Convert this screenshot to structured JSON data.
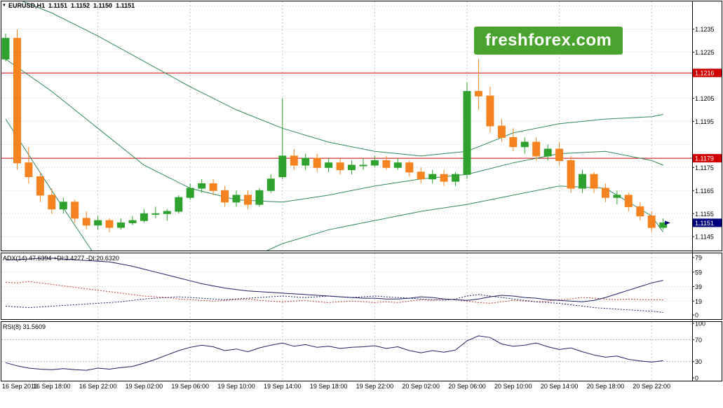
{
  "window": {
    "symbol_period": "EURUSD,H1",
    "ohlc": {
      "open": "1.1151",
      "high": "1.1152",
      "low": "1.1150",
      "close": "1.1151"
    }
  },
  "watermark": {
    "text": "freshforex.com"
  },
  "colors": {
    "bull": "#2EA12E",
    "bear": "#F5831F",
    "band": "#2E8B57",
    "grid": "#C6C6C6",
    "level_red": "#D10000",
    "bid_bg": "#00007D",
    "tag_text": "#FFFFFF",
    "adx_line": "#1F1F66",
    "plus_di": "#1F1F66",
    "minus_di": "#C23B3B",
    "rsi_line": "#1F1F66",
    "rsi_level": "#AFAFC8",
    "watermark_bg": "#4BA32F",
    "watermark_fg": "#FFFFFF",
    "axis_text": "#000000"
  },
  "chart_data": {
    "type": "candlestick",
    "symbol": "EURUSD",
    "timeframe": "H1",
    "bars_per_label": 4,
    "grid_start_bar": 8,
    "grid_every_bars": 8,
    "x_labels": [
      "16 Sep 2016",
      "16 Sep 18:00",
      "16 Sep 22:00",
      "19 Sep 02:00",
      "19 Sep 06:00",
      "19 Sep 10:00",
      "19 Sep 14:00",
      "19 Sep 18:00",
      "19 Sep 22:00",
      "20 Sep 02:00",
      "20 Sep 06:00",
      "20 Sep 10:00",
      "20 Sep 14:00",
      "20 Sep 18:00",
      "20 Sep 22:00"
    ],
    "price_axis": {
      "min": 1.1139,
      "max": 1.1247,
      "grid_step": 0.001,
      "ticks": [
        1.1235,
        1.1225,
        1.1205,
        1.1195,
        1.1175,
        1.1165,
        1.1155,
        1.1145
      ],
      "levels": [
        {
          "price": 1.1216,
          "label": "1.1216"
        },
        {
          "price": 1.1179,
          "label": "1.1179"
        }
      ],
      "bid": {
        "price": 1.1151,
        "label": "1.1151"
      }
    },
    "candles_ohlc": [
      [
        1.1222,
        1.1233,
        1.1221,
        1.1231
      ],
      [
        1.1231,
        1.1235,
        1.1174,
        1.1177
      ],
      [
        1.1177,
        1.1184,
        1.1168,
        1.1171
      ],
      [
        1.1171,
        1.1173,
        1.116,
        1.1163
      ],
      [
        1.1163,
        1.1166,
        1.1155,
        1.1157
      ],
      [
        1.1157,
        1.1162,
        1.1155,
        1.116
      ],
      [
        1.116,
        1.1161,
        1.1151,
        1.1153
      ],
      [
        1.1153,
        1.1156,
        1.1148,
        1.115
      ],
      [
        1.115,
        1.1154,
        1.1148,
        1.1152
      ],
      [
        1.1152,
        1.1153,
        1.1147,
        1.1149
      ],
      [
        1.1149,
        1.1153,
        1.1148,
        1.1151
      ],
      [
        1.1151,
        1.1154,
        1.115,
        1.1152
      ],
      [
        1.1152,
        1.1157,
        1.1151,
        1.1155
      ],
      [
        1.1155,
        1.1158,
        1.1153,
        1.1155
      ],
      [
        1.1155,
        1.1157,
        1.1152,
        1.1156
      ],
      [
        1.1156,
        1.1163,
        1.1155,
        1.1162
      ],
      [
        1.1162,
        1.1168,
        1.1161,
        1.1166
      ],
      [
        1.1166,
        1.117,
        1.1164,
        1.1168
      ],
      [
        1.1168,
        1.117,
        1.1163,
        1.1165
      ],
      [
        1.1165,
        1.1167,
        1.1158,
        1.116
      ],
      [
        1.116,
        1.1165,
        1.1158,
        1.1163
      ],
      [
        1.1163,
        1.1165,
        1.1157,
        1.1159
      ],
      [
        1.1159,
        1.1166,
        1.1158,
        1.1165
      ],
      [
        1.1165,
        1.1172,
        1.1164,
        1.117
      ],
      [
        1.1171,
        1.1205,
        1.117,
        1.118
      ],
      [
        1.118,
        1.1183,
        1.1174,
        1.1176
      ],
      [
        1.1176,
        1.1181,
        1.1174,
        1.1179
      ],
      [
        1.1179,
        1.1181,
        1.1173,
        1.1175
      ],
      [
        1.1175,
        1.1179,
        1.1173,
        1.1177
      ],
      [
        1.1177,
        1.1179,
        1.1172,
        1.1174
      ],
      [
        1.1174,
        1.1178,
        1.1172,
        1.1176
      ],
      [
        1.1176,
        1.1179,
        1.1174,
        1.1176
      ],
      [
        1.1176,
        1.118,
        1.1175,
        1.1178
      ],
      [
        1.1178,
        1.118,
        1.1174,
        1.1175
      ],
      [
        1.1175,
        1.1179,
        1.1174,
        1.1177
      ],
      [
        1.1177,
        1.1178,
        1.1171,
        1.1173
      ],
      [
        1.1173,
        1.1175,
        1.1168,
        1.117
      ],
      [
        1.117,
        1.1174,
        1.1168,
        1.1172
      ],
      [
        1.1172,
        1.1174,
        1.1167,
        1.1169
      ],
      [
        1.1169,
        1.1173,
        1.1167,
        1.1172
      ],
      [
        1.1172,
        1.1212,
        1.117,
        1.1208
      ],
      [
        1.1208,
        1.1222,
        1.12,
        1.1206
      ],
      [
        1.1206,
        1.121,
        1.119,
        1.1193
      ],
      [
        1.1193,
        1.1196,
        1.1186,
        1.1188
      ],
      [
        1.1188,
        1.1192,
        1.1182,
        1.1184
      ],
      [
        1.1184,
        1.1188,
        1.1181,
        1.1186
      ],
      [
        1.1186,
        1.1188,
        1.1178,
        1.118
      ],
      [
        1.118,
        1.1185,
        1.1178,
        1.1183
      ],
      [
        1.1183,
        1.1186,
        1.1176,
        1.1178
      ],
      [
        1.1178,
        1.118,
        1.1164,
        1.1166
      ],
      [
        1.1166,
        1.1174,
        1.1164,
        1.1172
      ],
      [
        1.1172,
        1.1173,
        1.1164,
        1.1166
      ],
      [
        1.1166,
        1.1168,
        1.116,
        1.1162
      ],
      [
        1.1162,
        1.1165,
        1.1159,
        1.1163
      ],
      [
        1.1163,
        1.1164,
        1.1156,
        1.1158
      ],
      [
        1.1158,
        1.116,
        1.1152,
        1.1154
      ],
      [
        1.1154,
        1.1156,
        1.1147,
        1.1149
      ],
      [
        1.1149,
        1.1153,
        1.1148,
        1.1151
      ]
    ],
    "bollinger": {
      "bars": [
        0,
        4,
        8,
        12,
        16,
        20,
        24,
        28,
        32,
        36,
        40,
        44,
        48,
        52,
        56,
        57
      ],
      "upper": [
        1.125,
        1.1242,
        1.1232,
        1.1221,
        1.121,
        1.12,
        1.1192,
        1.1186,
        1.1182,
        1.118,
        1.1182,
        1.119,
        1.1194,
        1.1196,
        1.1197,
        1.1198
      ],
      "middle": [
        1.1222,
        1.1208,
        1.1192,
        1.1176,
        1.1166,
        1.1161,
        1.116,
        1.1163,
        1.1167,
        1.117,
        1.1172,
        1.1177,
        1.1181,
        1.1182,
        1.1178,
        1.1176
      ],
      "lower": [
        1.1196,
        1.1165,
        1.1135,
        1.1122,
        1.1124,
        1.1133,
        1.1142,
        1.1148,
        1.1152,
        1.1156,
        1.1159,
        1.1163,
        1.1167,
        1.1166,
        1.1154,
        1.1147
      ]
    },
    "adx": {
      "label": "ADX(14) 47.6394 +DI:3.4277 -DI:20.6320",
      "axis_labels": [
        79,
        59,
        39,
        19,
        0
      ],
      "adx": [
        76,
        76,
        77,
        78,
        78,
        77,
        76,
        75,
        74,
        73,
        70,
        67,
        63,
        59,
        55,
        51,
        47,
        43,
        40,
        37,
        35,
        33,
        32,
        31,
        30,
        29,
        28,
        27,
        26,
        25,
        24,
        23,
        23,
        22,
        22,
        23,
        25,
        24,
        22,
        21,
        20,
        22,
        25,
        27,
        26,
        24,
        23,
        21,
        20,
        19,
        18,
        20,
        24,
        29,
        34,
        39,
        44,
        47.6
      ],
      "plus_di": [
        12,
        11,
        10,
        11,
        12,
        13,
        14,
        15,
        16,
        17,
        18,
        20,
        22,
        23,
        24,
        25,
        24,
        23,
        22,
        21,
        22,
        23,
        24,
        25,
        26,
        25,
        24,
        25,
        26,
        25,
        24,
        25,
        26,
        25,
        24,
        23,
        22,
        21,
        20,
        22,
        26,
        28,
        26,
        24,
        22,
        20,
        18,
        17,
        16,
        14,
        12,
        10,
        9,
        8,
        7,
        6,
        5,
        3.4
      ],
      "minus_di": [
        45,
        44,
        46,
        44,
        42,
        40,
        38,
        36,
        34,
        32,
        30,
        28,
        26,
        25,
        24,
        22,
        21,
        20,
        19,
        20,
        21,
        22,
        20,
        19,
        18,
        19,
        20,
        18,
        17,
        18,
        19,
        18,
        17,
        18,
        17,
        19,
        21,
        20,
        22,
        21,
        19,
        17,
        16,
        18,
        20,
        19,
        18,
        19,
        21,
        22,
        24,
        23,
        22,
        21,
        22,
        21,
        21,
        20.6
      ]
    },
    "rsi": {
      "label": "RSI(8) 31.5609",
      "axis_labels": [
        100,
        70,
        30,
        0
      ],
      "levels": [
        70,
        30
      ],
      "values": [
        28,
        22,
        18,
        16,
        15,
        17,
        15,
        14,
        18,
        16,
        19,
        21,
        27,
        34,
        42,
        50,
        56,
        60,
        57,
        50,
        53,
        48,
        55,
        60,
        64,
        58,
        61,
        56,
        58,
        54,
        56,
        57,
        59,
        54,
        57,
        50,
        46,
        50,
        47,
        51,
        68,
        77,
        74,
        62,
        58,
        60,
        64,
        57,
        52,
        55,
        48,
        42,
        38,
        40,
        34,
        31,
        29,
        31.6
      ]
    }
  }
}
